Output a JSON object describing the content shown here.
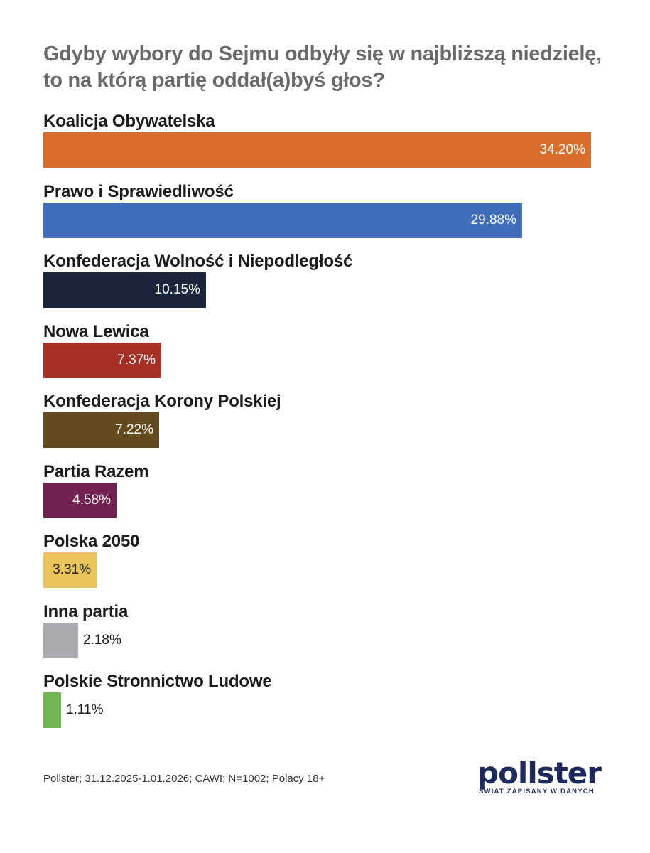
{
  "header": {
    "title_line1": "Gdyby wybory do Sejmu odbyły się w najbliższą niedzielę,",
    "title_line2": "to na którą partię oddał(a)byś głos?"
  },
  "chart_data": {
    "type": "bar",
    "orientation": "horizontal",
    "title": "Gdyby wybory do Sejmu odbyły się w najbliższą niedzielę, to na którą partię oddał(a)byś głos?",
    "categories": [
      "Koalicja Obywatelska",
      "Prawo i Sprawiedliwość",
      "Konfederacja Wolność i Niepodległość",
      "Nowa Lewica",
      "Konfederacja Korony Polskiej",
      "Partia Razem",
      "Polska 2050",
      "Inna partia",
      "Polskie Stronnictwo Ludowe"
    ],
    "values": [
      34.2,
      29.88,
      10.15,
      7.37,
      7.22,
      4.58,
      3.31,
      2.18,
      1.11
    ],
    "value_labels": [
      "34.20%",
      "29.88%",
      "10.15%",
      "7.37%",
      "7.22%",
      "4.58%",
      "3.31%",
      "2.18%",
      "1.11%"
    ],
    "unit": "%",
    "colors": [
      "#d96e2c",
      "#3f6db9",
      "#1b263b",
      "#a63026",
      "#624a1e",
      "#72204f",
      "#e8c45b",
      "#a8aaaf",
      "#72b554"
    ],
    "value_label_colors": [
      "#ffffff",
      "#ffffff",
      "#ffffff",
      "#ffffff",
      "#ffffff",
      "#ffffff",
      "#1c1c1c",
      "#1c1c1c",
      "#1c1c1c"
    ],
    "xlim": [
      0,
      34.2
    ],
    "grid": false,
    "legend": "none"
  },
  "footer": {
    "source": "Pollster; 31.12.2025-1.01.2026; CAWI; N=1002; Polacy 18+",
    "logo_word": "pollster",
    "logo_tagline": "ŚWIAT ZAPISANY W DANYCH"
  }
}
